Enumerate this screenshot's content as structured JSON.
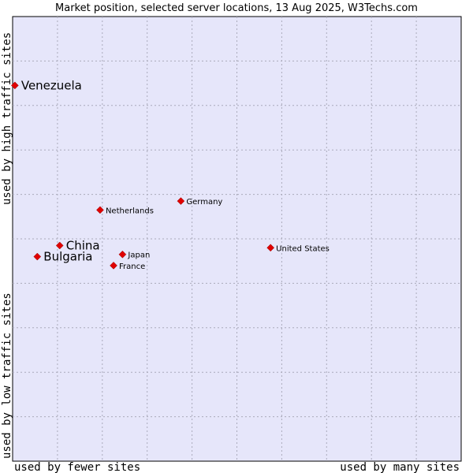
{
  "chart_data": {
    "type": "scatter",
    "title": "Market position, selected server locations, 13 Aug 2025, W3Techs.com",
    "xlabel_low": "used by fewer sites",
    "xlabel_high": "used by many sites",
    "ylabel_low": "used by low traffic sites",
    "ylabel_high": "used by high traffic sites",
    "xlim": [
      0,
      100
    ],
    "ylim": [
      0,
      100
    ],
    "grid": true,
    "colors": {
      "plot_bg": "#e6e6fa",
      "point": "#e00000",
      "grid": "#aaaabb"
    },
    "points": [
      {
        "label": "Venezuela",
        "x": 0.5,
        "y": 84.5,
        "size": "large"
      },
      {
        "label": "Germany",
        "x": 37.5,
        "y": 58.5,
        "size": "small"
      },
      {
        "label": "Netherlands",
        "x": 19.5,
        "y": 56.5,
        "size": "small"
      },
      {
        "label": "China",
        "x": 10.5,
        "y": 48.5,
        "size": "large"
      },
      {
        "label": "United States",
        "x": 57.5,
        "y": 48.0,
        "size": "small"
      },
      {
        "label": "Japan",
        "x": 24.5,
        "y": 46.5,
        "size": "small"
      },
      {
        "label": "Bulgaria",
        "x": 5.5,
        "y": 46.0,
        "size": "large"
      },
      {
        "label": "France",
        "x": 22.5,
        "y": 44.0,
        "size": "small"
      }
    ]
  }
}
